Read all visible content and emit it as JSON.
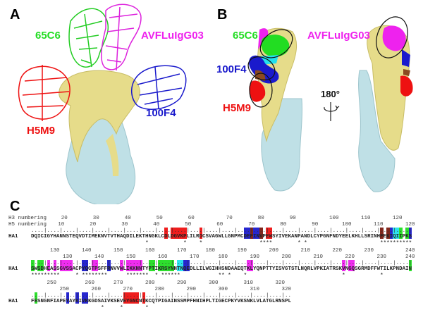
{
  "panels": {
    "a": "A",
    "b": "B",
    "c": "C"
  },
  "antibodies": {
    "a_65c6": "65C6",
    "a_avf": "AVFLuIgG03",
    "a_100f4": "100F4",
    "a_h5m9": "H5M9",
    "b_65c6": "65C6",
    "b_avf": "AVFLuIgG03",
    "b_100f4": "100F4",
    "b_h5m9": "H5M9"
  },
  "rotation_label": "180°",
  "colors": {
    "65C6": "#22dd22",
    "AVFLuIgG03": "#ee22ee",
    "100F4": "#1a1acc",
    "H5M9": "#ee1111",
    "HA1": "#e6dc8a",
    "HA2": "#bfe0e6",
    "overlap_cyan": "#22e0ee",
    "overlap_brown": "#7a1a10"
  },
  "alignment": {
    "h3_label": "H3 numbering",
    "h5_label": "H5 numbering",
    "rows": [
      {
        "chain": "HA1",
        "sequence": "DQICIGYHANNSTEQVDTIMEKNVTVTHAQDILEKTHNGKLCDLDGVKPLILRDCSVAGWLLGNPMCDEFINVPEWSYIVEKANPANDLCYPGNFNDYEELKHLLSRINHFEKIQIIPKS",
        "h3_numbers": [
          [
            20,
            10
          ],
          [
            30,
            20
          ],
          [
            40,
            30
          ],
          [
            50,
            40
          ],
          [
            60,
            50
          ],
          [
            70,
            62
          ],
          [
            80,
            72
          ],
          [
            90,
            82
          ],
          [
            100,
            95
          ],
          [
            110,
            105
          ],
          [
            120,
            115
          ]
        ],
        "h5_numbers": [
          [
            10,
            9
          ],
          [
            20,
            19
          ],
          [
            30,
            29
          ],
          [
            40,
            39
          ],
          [
            50,
            49
          ],
          [
            60,
            59
          ],
          [
            70,
            69
          ],
          [
            80,
            79
          ],
          [
            90,
            89
          ],
          [
            100,
            99
          ],
          [
            110,
            109
          ],
          [
            120,
            119
          ]
        ],
        "highlights": [
          [
            42,
            42,
            "red"
          ],
          [
            44,
            48,
            "red"
          ],
          [
            53,
            53,
            "red"
          ],
          [
            67,
            68,
            "blue"
          ],
          [
            69,
            69,
            "brown"
          ],
          [
            70,
            71,
            "blue"
          ],
          [
            72,
            72,
            "brown"
          ],
          [
            74,
            75,
            "red"
          ],
          [
            110,
            110,
            "brown"
          ],
          [
            112,
            112,
            "brown"
          ],
          [
            113,
            113,
            "blue"
          ],
          [
            114,
            115,
            "cyan"
          ],
          [
            116,
            116,
            "green"
          ],
          [
            118,
            118,
            "green"
          ],
          [
            119,
            119,
            "blue"
          ]
        ],
        "stars": [
          36,
          48,
          53,
          72,
          73,
          74,
          75,
          84,
          86,
          110,
          111,
          112,
          113,
          114,
          115,
          116,
          117,
          118,
          119
        ]
      },
      {
        "chain": "HA1",
        "sequence": "SWSDHEASSGVSSACPYQGTPSFFRNVVWLIKKNNTYPTIKRSYNNTNQEDLLILWGIHHSNDAAEQTKLYQNPTTYISVGTSTLNQRLVPKIATRSKVNGQSGRMDFFWTILKPNDAIN",
        "h3_numbers": [
          [
            130,
            7
          ],
          [
            140,
            17
          ],
          [
            150,
            27
          ],
          [
            160,
            37
          ],
          [
            170,
            47
          ],
          [
            180,
            56
          ],
          [
            190,
            66
          ],
          [
            200,
            76
          ],
          [
            210,
            86
          ],
          [
            220,
            96
          ],
          [
            230,
            106
          ],
          [
            240,
            119
          ]
        ],
        "h5_numbers": [
          [
            130,
            11
          ],
          [
            140,
            21
          ],
          [
            150,
            31
          ],
          [
            160,
            41
          ],
          [
            170,
            51
          ],
          [
            180,
            60
          ],
          [
            190,
            70
          ],
          [
            200,
            80
          ],
          [
            210,
            90
          ],
          [
            220,
            100
          ],
          [
            230,
            110
          ],
          [
            240,
            119
          ]
        ],
        "highlights": [
          [
            0,
            0,
            "green"
          ],
          [
            2,
            3,
            "green"
          ],
          [
            5,
            5,
            "magenta"
          ],
          [
            7,
            7,
            "magenta"
          ],
          [
            9,
            12,
            "magenta"
          ],
          [
            16,
            17,
            "blue"
          ],
          [
            19,
            20,
            "magenta"
          ],
          [
            24,
            24,
            "blue"
          ],
          [
            28,
            28,
            "magenta"
          ],
          [
            30,
            34,
            "magenta"
          ],
          [
            37,
            38,
            "green"
          ],
          [
            40,
            44,
            "green"
          ],
          [
            46,
            47,
            "cyan"
          ],
          [
            48,
            49,
            "blue"
          ],
          [
            68,
            69,
            "magenta"
          ],
          [
            98,
            98,
            "magenta"
          ],
          [
            100,
            101,
            "magenta"
          ],
          [
            119,
            119,
            "green"
          ]
        ],
        "stars": [
          0,
          1,
          2,
          3,
          4,
          5,
          6,
          7,
          8,
          14,
          16,
          17,
          18,
          19,
          20,
          21,
          22,
          23,
          30,
          31,
          32,
          33,
          34,
          35,
          36,
          39,
          41,
          42,
          43,
          44,
          45,
          46,
          59,
          60,
          62,
          67,
          98,
          110
        ]
      },
      {
        "chain": "HA1",
        "sequence": "FESNGNFIAPEYAYKIVKKGDSAIVKSEVEYGNCNTKCQTPIGAINSSMPFHNIHPLTIGECPKYVKSNKLVLATGLRNSPL",
        "h3_numbers": [
          [
            250,
            6
          ],
          [
            260,
            18
          ],
          [
            270,
            27
          ],
          [
            280,
            37
          ],
          [
            290,
            47
          ],
          [
            300,
            57
          ],
          [
            310,
            68
          ],
          [
            320,
            78
          ]
        ],
        "h5_numbers": [
          [
            250,
            10
          ],
          [
            260,
            20
          ],
          [
            270,
            30
          ],
          [
            280,
            40
          ],
          [
            290,
            50
          ],
          [
            300,
            60
          ],
          [
            310,
            70
          ],
          [
            320,
            80
          ]
        ],
        "highlights": [
          [
            1,
            1,
            "green"
          ],
          [
            11,
            11,
            "blue"
          ],
          [
            14,
            14,
            "blue"
          ],
          [
            16,
            17,
            "blue"
          ],
          [
            29,
            32,
            "red"
          ],
          [
            33,
            33,
            "red"
          ],
          [
            35,
            35,
            "red"
          ]
        ],
        "stars": [
          22,
          28,
          36
        ]
      }
    ]
  }
}
